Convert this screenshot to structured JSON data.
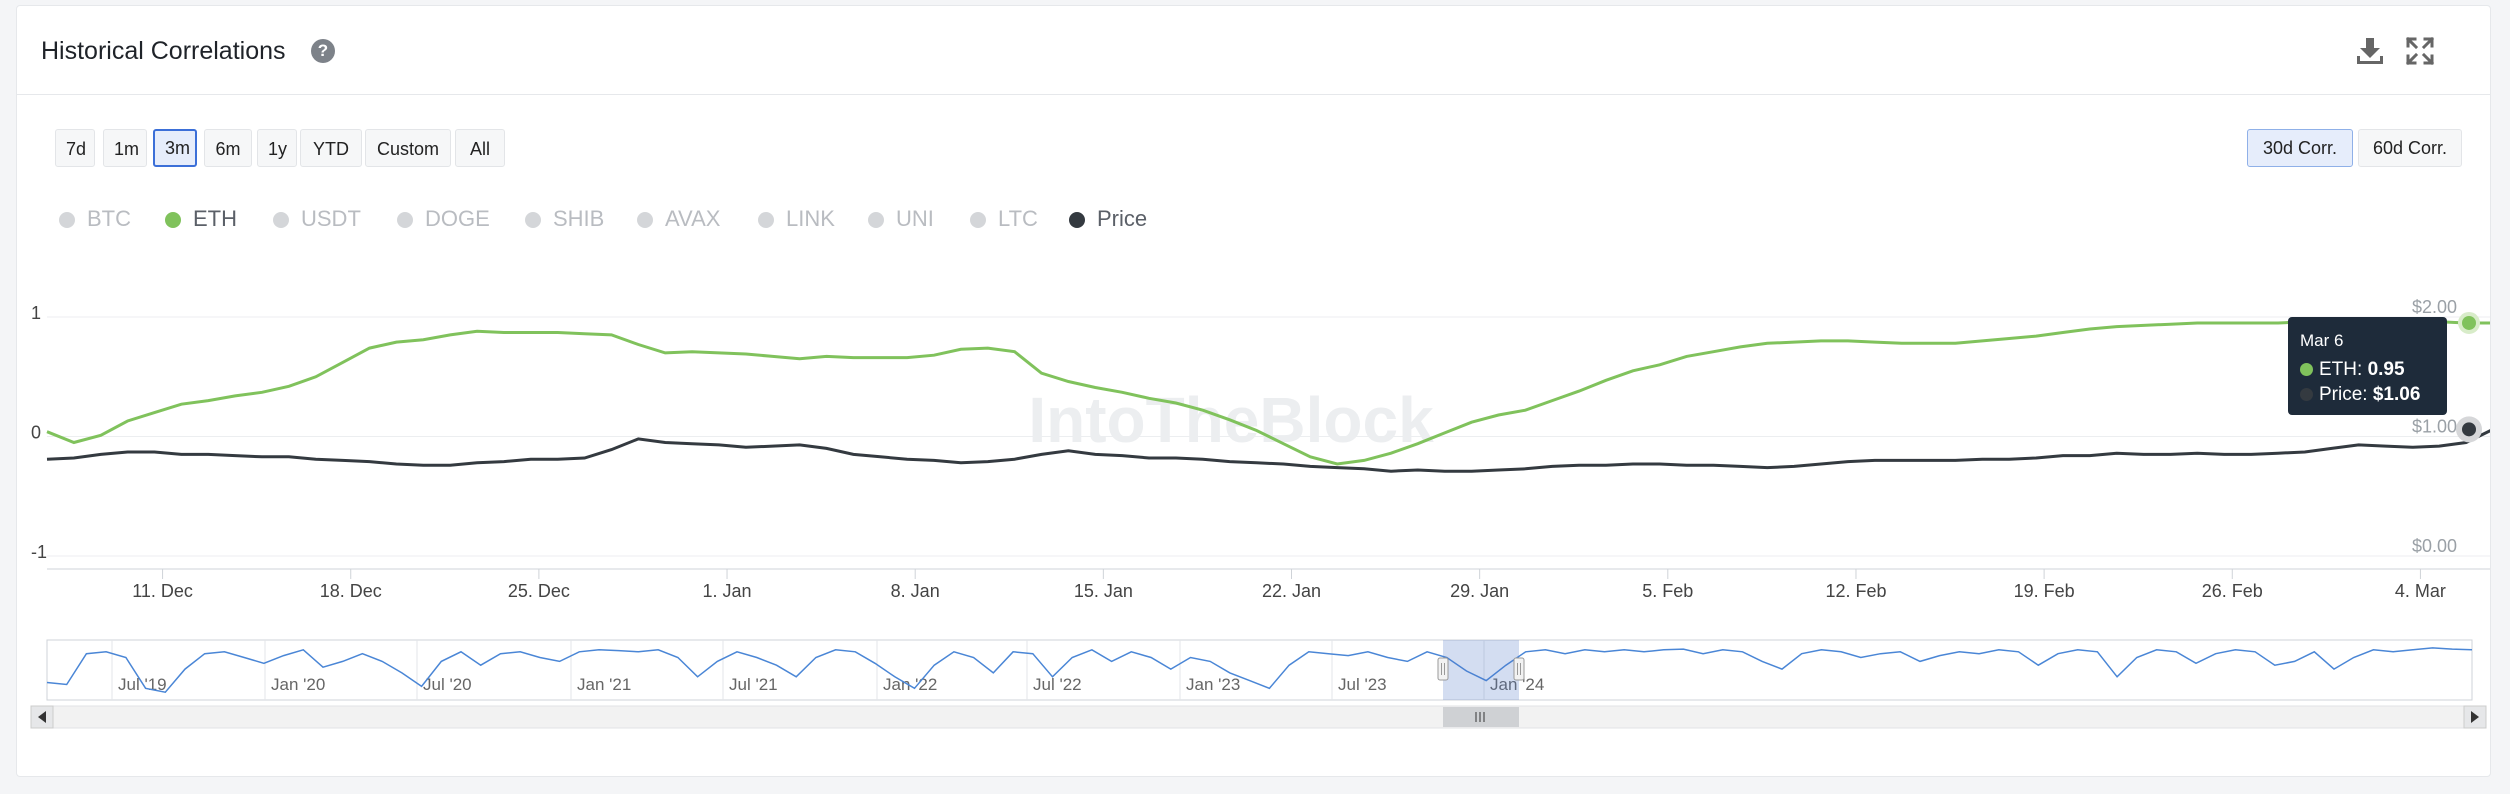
{
  "header": {
    "title": "Historical Correlations"
  },
  "ranges": [
    "7d",
    "1m",
    "3m",
    "6m",
    "1y",
    "YTD",
    "Custom",
    "All"
  ],
  "active_range": "3m",
  "corr_buttons": [
    "30d Corr.",
    "60d Corr."
  ],
  "active_corr": "30d Corr.",
  "legend": [
    {
      "label": "BTC",
      "active": false
    },
    {
      "label": "ETH",
      "active": true,
      "color": "#80c25c"
    },
    {
      "label": "USDT",
      "active": false
    },
    {
      "label": "DOGE",
      "active": false
    },
    {
      "label": "SHIB",
      "active": false
    },
    {
      "label": "AVAX",
      "active": false
    },
    {
      "label": "LINK",
      "active": false
    },
    {
      "label": "UNI",
      "active": false
    },
    {
      "label": "LTC",
      "active": false
    },
    {
      "label": "Price",
      "active": true,
      "color": "#343a40"
    }
  ],
  "colors": {
    "eth": "#80c25c",
    "price": "#343a40",
    "navigator": "#4a86d6",
    "accent": "#3b6fd8"
  },
  "watermark": "IntoTheBlock",
  "tooltip": {
    "date": "Mar 6",
    "eth_label": "ETH:",
    "eth_value": "0.95",
    "price_label": "Price:",
    "price_value": "$1.06"
  },
  "chart_data": {
    "type": "line",
    "x_tick_labels": [
      "11. Dec",
      "18. Dec",
      "25. Dec",
      "1. Jan",
      "8. Jan",
      "15. Jan",
      "22. Jan",
      "29. Jan",
      "5. Feb",
      "12. Feb",
      "19. Feb",
      "26. Feb",
      "4. Mar"
    ],
    "y_left_ticks": [
      "1",
      "0",
      "-1"
    ],
    "y_left_range": [
      -1,
      1
    ],
    "y_right_ticks": [
      "$2.00",
      "$1.00",
      "$0.00"
    ],
    "y_right_range": [
      0,
      2
    ],
    "x_days_range": [
      0,
      91
    ],
    "grid": "horizontal",
    "series": [
      {
        "name": "ETH",
        "axis": "left",
        "x": [
          0,
          1,
          2,
          3,
          4,
          5,
          6,
          7,
          8,
          9,
          10,
          11,
          12,
          13,
          14,
          15,
          16,
          17,
          18,
          19,
          20,
          21,
          22,
          23,
          24,
          25,
          26,
          27,
          28,
          29,
          30,
          31,
          32,
          33,
          34,
          35,
          36,
          37,
          38,
          39,
          40,
          41,
          42,
          43,
          44,
          45,
          46,
          47,
          48,
          49,
          50,
          51,
          52,
          53,
          54,
          55,
          56,
          57,
          58,
          59,
          60,
          61,
          62,
          63,
          64,
          65,
          66,
          67,
          68,
          69,
          70,
          71,
          72,
          73,
          74,
          75,
          76,
          77,
          78,
          79,
          80,
          81,
          82,
          83,
          84,
          85,
          86,
          87,
          88,
          89,
          90,
          91
        ],
        "values": [
          0.04,
          -0.05,
          0.01,
          0.13,
          0.2,
          0.27,
          0.3,
          0.34,
          0.37,
          0.42,
          0.5,
          0.62,
          0.74,
          0.79,
          0.81,
          0.85,
          0.88,
          0.87,
          0.87,
          0.87,
          0.86,
          0.85,
          0.77,
          0.7,
          0.71,
          0.7,
          0.69,
          0.67,
          0.65,
          0.67,
          0.66,
          0.66,
          0.66,
          0.68,
          0.73,
          0.74,
          0.71,
          0.53,
          0.46,
          0.41,
          0.37,
          0.32,
          0.28,
          0.22,
          0.14,
          0.05,
          -0.06,
          -0.17,
          -0.23,
          -0.2,
          -0.14,
          -0.06,
          0.03,
          0.12,
          0.18,
          0.22,
          0.3,
          0.38,
          0.47,
          0.55,
          0.6,
          0.67,
          0.71,
          0.75,
          0.78,
          0.79,
          0.8,
          0.8,
          0.79,
          0.78,
          0.78,
          0.78,
          0.8,
          0.82,
          0.84,
          0.87,
          0.9,
          0.92,
          0.93,
          0.94,
          0.95,
          0.95,
          0.95,
          0.95,
          0.96,
          0.95,
          0.96,
          0.95,
          0.96,
          0.96,
          0.95,
          0.95
        ]
      },
      {
        "name": "Price",
        "axis": "right",
        "x": [
          0,
          1,
          2,
          3,
          4,
          5,
          6,
          7,
          8,
          9,
          10,
          11,
          12,
          13,
          14,
          15,
          16,
          17,
          18,
          19,
          20,
          21,
          22,
          23,
          24,
          25,
          26,
          27,
          28,
          29,
          30,
          31,
          32,
          33,
          34,
          35,
          36,
          37,
          38,
          39,
          40,
          41,
          42,
          43,
          44,
          45,
          46,
          47,
          48,
          49,
          50,
          51,
          52,
          53,
          54,
          55,
          56,
          57,
          58,
          59,
          60,
          61,
          62,
          63,
          64,
          65,
          66,
          67,
          68,
          69,
          70,
          71,
          72,
          73,
          74,
          75,
          76,
          77,
          78,
          79,
          80,
          81,
          82,
          83,
          84,
          85,
          86,
          87,
          88,
          89,
          90,
          91
        ],
        "values": [
          0.81,
          0.82,
          0.85,
          0.87,
          0.87,
          0.85,
          0.85,
          0.84,
          0.83,
          0.83,
          0.81,
          0.8,
          0.79,
          0.77,
          0.76,
          0.76,
          0.78,
          0.79,
          0.81,
          0.81,
          0.82,
          0.89,
          0.98,
          0.95,
          0.94,
          0.93,
          0.91,
          0.92,
          0.93,
          0.9,
          0.85,
          0.83,
          0.81,
          0.8,
          0.78,
          0.79,
          0.81,
          0.85,
          0.88,
          0.85,
          0.84,
          0.82,
          0.82,
          0.81,
          0.79,
          0.78,
          0.77,
          0.75,
          0.74,
          0.73,
          0.71,
          0.72,
          0.71,
          0.71,
          0.72,
          0.73,
          0.75,
          0.76,
          0.76,
          0.77,
          0.77,
          0.76,
          0.76,
          0.75,
          0.74,
          0.75,
          0.77,
          0.79,
          0.8,
          0.8,
          0.8,
          0.8,
          0.81,
          0.81,
          0.82,
          0.84,
          0.84,
          0.86,
          0.85,
          0.85,
          0.86,
          0.85,
          0.85,
          0.86,
          0.87,
          0.9,
          0.93,
          0.92,
          0.91,
          0.92,
          0.95,
          1.06
        ]
      }
    ],
    "navigator": {
      "x_tick_labels": [
        "Jul '19",
        "Jan '20",
        "Jul '20",
        "Jan '21",
        "Jul '21",
        "Jan '22",
        "Jul '22",
        "Jan '23",
        "Jul '23",
        "Jan '24"
      ],
      "values": [
        0.05,
        0.0,
        0.8,
        0.85,
        0.7,
        -0.1,
        -0.2,
        0.4,
        0.8,
        0.85,
        0.7,
        0.55,
        0.75,
        0.9,
        0.45,
        0.6,
        0.8,
        0.6,
        0.3,
        -0.05,
        0.6,
        0.85,
        0.5,
        0.8,
        0.85,
        0.7,
        0.6,
        0.85,
        0.9,
        0.88,
        0.85,
        0.9,
        0.7,
        0.2,
        0.6,
        0.85,
        0.7,
        0.5,
        0.2,
        0.7,
        0.9,
        0.85,
        0.55,
        0.2,
        -0.1,
        0.5,
        0.85,
        0.7,
        0.3,
        0.85,
        0.8,
        0.2,
        0.7,
        0.9,
        0.6,
        0.85,
        0.7,
        0.4,
        0.7,
        0.6,
        0.3,
        0.1,
        -0.1,
        0.5,
        0.85,
        0.8,
        0.75,
        0.85,
        0.7,
        0.6,
        0.85,
        0.7,
        0.35,
        0.1,
        0.5,
        0.85,
        0.9,
        0.8,
        0.9,
        0.85,
        0.9,
        0.85,
        0.9,
        0.92,
        0.8,
        0.9,
        0.85,
        0.6,
        0.4,
        0.8,
        0.9,
        0.85,
        0.7,
        0.8,
        0.85,
        0.6,
        0.75,
        0.85,
        0.8,
        0.9,
        0.85,
        0.5,
        0.8,
        0.9,
        0.85,
        0.2,
        0.7,
        0.9,
        0.85,
        0.55,
        0.8,
        0.9,
        0.85,
        0.5,
        0.6,
        0.85,
        0.4,
        0.7,
        0.9,
        0.85,
        0.9,
        0.95,
        0.92,
        0.9
      ]
    }
  }
}
